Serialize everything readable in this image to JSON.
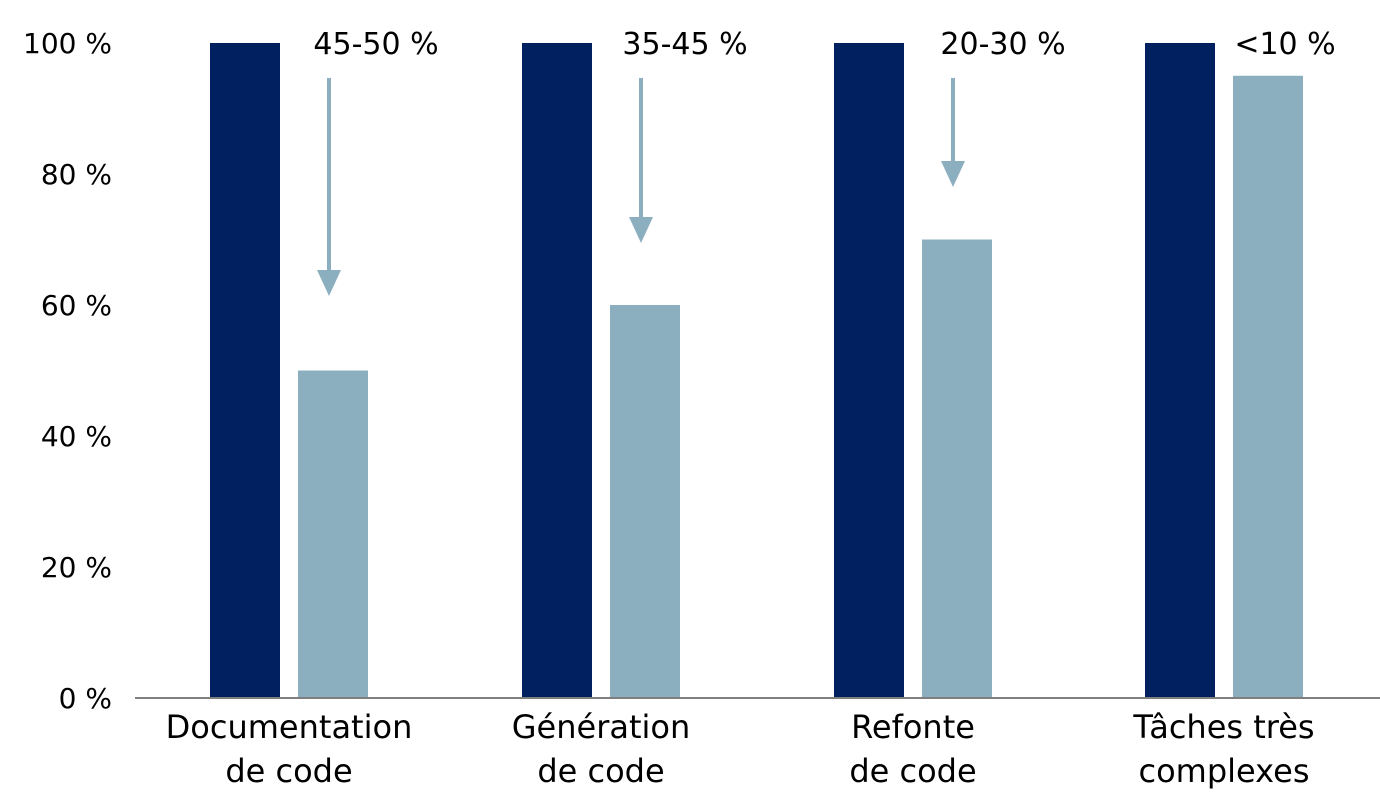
{
  "chart_data": {
    "type": "bar",
    "categories": [
      [
        "Documentation",
        "de code"
      ],
      [
        "Génération",
        "de code"
      ],
      [
        "Refonte",
        "de code"
      ],
      [
        "Tâches très",
        "complexes"
      ]
    ],
    "series": [
      {
        "values": [
          100,
          100,
          100,
          100
        ],
        "color": "#002060"
      },
      {
        "values": [
          50,
          60,
          70,
          95
        ],
        "color": "#8CAFC0"
      }
    ],
    "annotations": [
      "45-50 %",
      "35-45 %",
      "20-30 %",
      "<10 %"
    ],
    "yticks": [
      "0 %",
      "20 %",
      "40 %",
      "60 %",
      "80 %",
      "100 %"
    ],
    "ylim": [
      0,
      100
    ],
    "grid": false,
    "legend": "none",
    "arrow_color": "#8CAFC0"
  }
}
